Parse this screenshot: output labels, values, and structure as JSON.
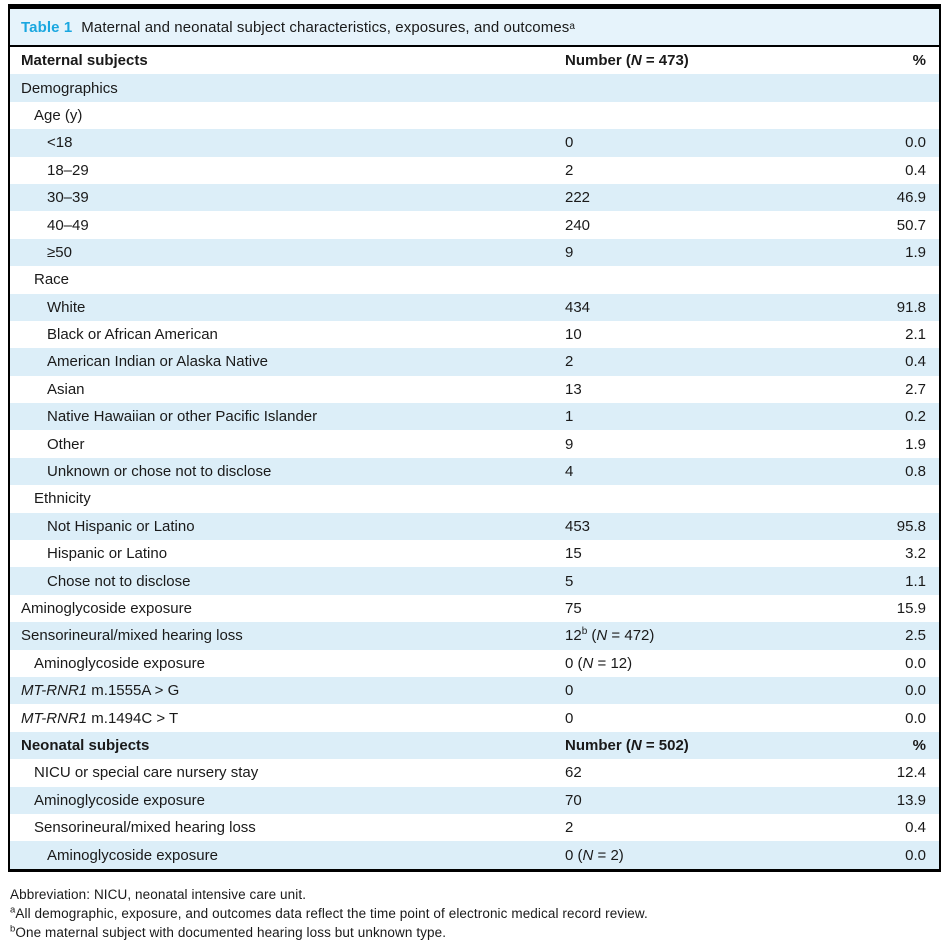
{
  "colors": {
    "accent": "#1aa7e0",
    "stripe": "#dceef8",
    "title_band": "#e6f3fb",
    "border": "#000000",
    "text": "#1a1a1a"
  },
  "caption": {
    "label": "Table 1",
    "text": "Maternal and neonatal subject characteristics, exposures, and outcomes",
    "sup": "a"
  },
  "rows": [
    {
      "bold": true,
      "indent": 0,
      "label": "Maternal subjects",
      "num": "Number (",
      "num_n": "N",
      "num_end": " = 473)",
      "pct": "%"
    },
    {
      "indent": 0,
      "label": "Demographics"
    },
    {
      "indent": 1,
      "label": "Age (y)"
    },
    {
      "indent": 2,
      "label": "<18",
      "num": "0",
      "pct": "0.0"
    },
    {
      "indent": 2,
      "label": "18–29",
      "num": "2",
      "pct": "0.4"
    },
    {
      "indent": 2,
      "label": "30–39",
      "num": "222",
      "pct": "46.9"
    },
    {
      "indent": 2,
      "label": "40–49",
      "num": "240",
      "pct": "50.7"
    },
    {
      "indent": 2,
      "label": "≥50",
      "num": "9",
      "pct": "1.9"
    },
    {
      "indent": 1,
      "label": "Race"
    },
    {
      "indent": 2,
      "label": "White",
      "num": "434",
      "pct": "91.8"
    },
    {
      "indent": 2,
      "label": "Black or African American",
      "num": "10",
      "pct": "2.1"
    },
    {
      "indent": 2,
      "label": "American Indian or Alaska Native",
      "num": "2",
      "pct": "0.4"
    },
    {
      "indent": 2,
      "label": "Asian",
      "num": "13",
      "pct": "2.7"
    },
    {
      "indent": 2,
      "label": "Native Hawaiian or other Pacific Islander",
      "num": "1",
      "pct": "0.2"
    },
    {
      "indent": 2,
      "label": "Other",
      "num": "9",
      "pct": "1.9"
    },
    {
      "indent": 2,
      "label": "Unknown or chose not to disclose",
      "num": "4",
      "pct": "0.8"
    },
    {
      "indent": 1,
      "label": "Ethnicity"
    },
    {
      "indent": 2,
      "label": "Not Hispanic or Latino",
      "num": "453",
      "pct": "95.8"
    },
    {
      "indent": 2,
      "label": "Hispanic or Latino",
      "num": "15",
      "pct": "3.2"
    },
    {
      "indent": 2,
      "label": "Chose not to disclose",
      "num": "5",
      "pct": "1.1"
    },
    {
      "indent": 0,
      "label": "Aminoglycoside exposure",
      "num": "75",
      "pct": "15.9"
    },
    {
      "indent": 0,
      "label": "Sensorineural/mixed hearing loss",
      "num": "12",
      "num_sup": "b",
      "num_mid": " (",
      "num_n": "N",
      "num_end": " = 472)",
      "pct": "2.5"
    },
    {
      "indent": 1,
      "label": "Aminoglycoside exposure",
      "num": "0 (",
      "num_n": "N",
      "num_end": " = 12)",
      "pct": "0.0"
    },
    {
      "indent": 0,
      "label_italic": "MT-RNR1",
      "label": " m.1555A > G",
      "num": "0",
      "pct": "0.0"
    },
    {
      "indent": 0,
      "label_italic": "MT-RNR1",
      "label": " m.1494C > T",
      "num": "0",
      "pct": "0.0"
    },
    {
      "bold": true,
      "indent": 0,
      "label": "Neonatal subjects",
      "num": "Number (",
      "num_n": "N",
      "num_end": " = 502)",
      "pct": "%"
    },
    {
      "indent": 1,
      "label": "NICU or special care nursery stay",
      "num": "62",
      "pct": "12.4"
    },
    {
      "indent": 1,
      "label": "Aminoglycoside exposure",
      "num": "70",
      "pct": "13.9"
    },
    {
      "indent": 1,
      "label": "Sensorineural/mixed hearing loss",
      "num": "2",
      "pct": "0.4"
    },
    {
      "indent": 2,
      "label": "Aminoglycoside exposure",
      "num": "0 (",
      "num_n": "N",
      "num_end": " = 2)",
      "pct": "0.0"
    }
  ],
  "footnotes": {
    "abbreviation": "Abbreviation: NICU, neonatal intensive care unit.",
    "a_sup": "a",
    "a_text": "All demographic, exposure, and outcomes data reflect the time point of electronic medical record review.",
    "b_sup": "b",
    "b_text": "One maternal subject with documented hearing loss but unknown type."
  }
}
